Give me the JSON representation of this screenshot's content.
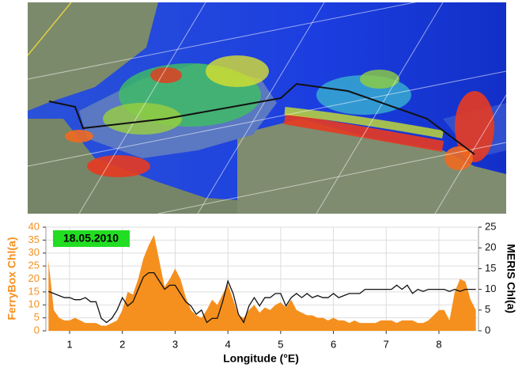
{
  "chart_data": {
    "type": "combo",
    "annotation": "18.05.2010",
    "x_label": "Longitude  (°E)",
    "y_label": "FerryBox Chl(a)",
    "y2_label": "MERIS Chl(a)",
    "x": [
      0.6,
      0.7,
      0.8,
      0.9,
      1.0,
      1.1,
      1.2,
      1.3,
      1.4,
      1.5,
      1.6,
      1.7,
      1.8,
      1.9,
      2.0,
      2.1,
      2.2,
      2.3,
      2.4,
      2.5,
      2.6,
      2.7,
      2.8,
      2.9,
      3.0,
      3.1,
      3.2,
      3.3,
      3.4,
      3.5,
      3.6,
      3.7,
      3.8,
      3.9,
      4.0,
      4.1,
      4.2,
      4.3,
      4.4,
      4.5,
      4.6,
      4.7,
      4.8,
      4.9,
      5.0,
      5.1,
      5.2,
      5.3,
      5.4,
      5.5,
      5.6,
      5.7,
      5.8,
      5.9,
      6.0,
      6.1,
      6.2,
      6.3,
      6.4,
      6.5,
      6.6,
      6.7,
      6.8,
      6.9,
      7.0,
      7.1,
      7.2,
      7.3,
      7.4,
      7.5,
      7.6,
      7.7,
      7.8,
      7.9,
      8.0,
      8.1,
      8.2,
      8.3,
      8.4,
      8.5,
      8.6,
      8.7
    ],
    "series": [
      {
        "name": "FerryBox Chl(a)",
        "type": "area",
        "axis": "y",
        "color": "#f5901e",
        "values": [
          27,
          8,
          5,
          4,
          4,
          5,
          4,
          3,
          3,
          3,
          2,
          2,
          3,
          4,
          8,
          15,
          14,
          20,
          28,
          33,
          37,
          27,
          17,
          20,
          24,
          20,
          13,
          8,
          6,
          5,
          8,
          12,
          10,
          14,
          18,
          12,
          6,
          5,
          8,
          10,
          7,
          9,
          8,
          10,
          11,
          9,
          12,
          8,
          7,
          6,
          6,
          5,
          5,
          4,
          5,
          4,
          4,
          3,
          4,
          3,
          3,
          3,
          3,
          4,
          4,
          4,
          3,
          4,
          4,
          4,
          3,
          3,
          4,
          6,
          8,
          8,
          4,
          15,
          20,
          19,
          12,
          8
        ]
      },
      {
        "name": "MERIS Chl(a)",
        "type": "line",
        "axis": "y2",
        "color": "#111111",
        "values": [
          9.5,
          9,
          8.5,
          8,
          8,
          7.5,
          7.5,
          8,
          7,
          7,
          3,
          2,
          3,
          5,
          8,
          6,
          7,
          10,
          13,
          14,
          14,
          12,
          10,
          11,
          11,
          9,
          7,
          6,
          4,
          5,
          2,
          3,
          3,
          7,
          12,
          9,
          4,
          2,
          6,
          8,
          6,
          8,
          8,
          9,
          9,
          6,
          8,
          9,
          8,
          9,
          8,
          8.5,
          8,
          8,
          9,
          8,
          8.5,
          9,
          9,
          9,
          10,
          10,
          10,
          10,
          10,
          10,
          11,
          10,
          11,
          9,
          10,
          9.5,
          10,
          10,
          10,
          10,
          9.5,
          10,
          9.5,
          10,
          10,
          10
        ]
      }
    ],
    "xlim": [
      0.55,
      8.75
    ],
    "xticks": [
      1,
      2,
      3,
      4,
      5,
      6,
      7,
      8
    ],
    "ylim": [
      0,
      40
    ],
    "yticks": [
      0,
      5,
      10,
      15,
      20,
      25,
      30,
      35,
      40
    ],
    "y2lim": [
      0,
      25
    ],
    "y2ticks": [
      0,
      5,
      10,
      15,
      20,
      25
    ],
    "grid": true
  }
}
